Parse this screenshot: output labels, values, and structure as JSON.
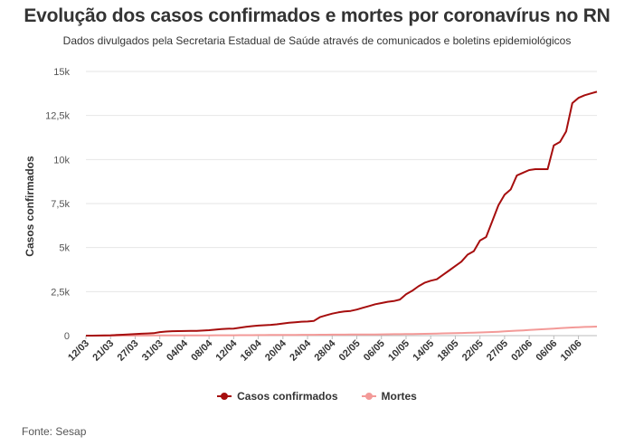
{
  "header": {
    "title": "Evolução dos casos confirmados e mortes por coronavírus no RN",
    "subtitle": "Dados divulgados pela Secretaria Estadual de Saúde através de comunicados e boletins epidemiológicos"
  },
  "footer": {
    "source": "Fonte: Sesap"
  },
  "chart_data": {
    "type": "line",
    "title": "Evolução dos casos confirmados e mortes por coronavírus no RN",
    "subtitle": "Dados divulgados pela Secretaria Estadual de Saúde através de comunicados e boletins epidemiológicos",
    "ylabel": "Casos confirmados",
    "xlabel": "",
    "ylim": [
      0,
      15000
    ],
    "yticks": [
      0,
      2500,
      5000,
      7500,
      10000,
      12500,
      15000
    ],
    "ytick_labels": [
      "0",
      "2,5k",
      "5k",
      "7,5k",
      "10k",
      "12,5k",
      "15k"
    ],
    "xtick_labels": [
      "12/03",
      "21/03",
      "27/03",
      "31/03",
      "04/04",
      "08/04",
      "12/04",
      "16/04",
      "20/04",
      "24/04",
      "28/04",
      "02/05",
      "06/05",
      "10/05",
      "14/05",
      "18/05",
      "22/05",
      "27/05",
      "02/06",
      "06/06",
      "10/06"
    ],
    "xtick_index": [
      0,
      4,
      8,
      12,
      16,
      20,
      24,
      28,
      32,
      36,
      40,
      44,
      48,
      52,
      56,
      60,
      64,
      68,
      72,
      76,
      80
    ],
    "n_points": 84,
    "legend_position": "bottom",
    "grid": true,
    "series": [
      {
        "name": "Casos confirmados",
        "color": "#a60e0e",
        "values": [
          1,
          2,
          7,
          13,
          21,
          35,
          52,
          70,
          90,
          110,
          125,
          140,
          200,
          230,
          250,
          255,
          260,
          265,
          270,
          290,
          310,
          340,
          370,
          390,
          400,
          450,
          500,
          540,
          570,
          590,
          610,
          640,
          690,
          730,
          760,
          790,
          800,
          830,
          1050,
          1150,
          1250,
          1320,
          1370,
          1400,
          1480,
          1580,
          1680,
          1780,
          1850,
          1920,
          1960,
          2050,
          2350,
          2550,
          2800,
          3000,
          3120,
          3200,
          3450,
          3700,
          3950,
          4200,
          4600,
          4800,
          5400,
          5600,
          6500,
          7400,
          8000,
          8300,
          9100,
          9250,
          9400,
          9450,
          9450,
          9450,
          10800,
          11000,
          11600,
          13200,
          13500,
          13650,
          13750,
          13850
        ]
      },
      {
        "name": "Mortes",
        "color": "#f39a98",
        "values": [
          0,
          0,
          0,
          1,
          1,
          2,
          3,
          4,
          5,
          6,
          7,
          8,
          9,
          10,
          11,
          12,
          13,
          14,
          15,
          16,
          17,
          18,
          19,
          20,
          22,
          24,
          26,
          28,
          30,
          32,
          34,
          36,
          38,
          40,
          42,
          44,
          46,
          48,
          50,
          52,
          54,
          56,
          58,
          60,
          62,
          64,
          66,
          68,
          72,
          76,
          80,
          84,
          88,
          92,
          98,
          104,
          110,
          118,
          126,
          134,
          142,
          150,
          160,
          170,
          180,
          190,
          205,
          220,
          240,
          260,
          280,
          300,
          320,
          340,
          360,
          380,
          400,
          420,
          440,
          460,
          480,
          495,
          505,
          515
        ]
      }
    ]
  }
}
